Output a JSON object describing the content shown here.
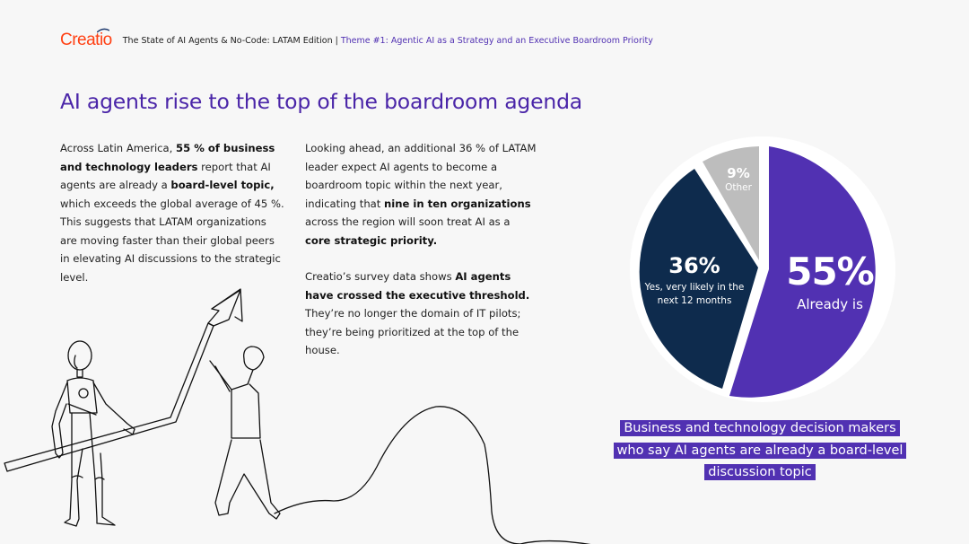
{
  "header": {
    "logo": "Creatio",
    "report_title": "The State of AI Agents & No-Code: LATAM Edition",
    "separator": "|",
    "theme": "Theme #1: Agentic AI as a Strategy and an Executive Boardroom Priority"
  },
  "title": "AI agents rise to the top of the boardroom agenda",
  "column1": {
    "p1": [
      {
        "text": "Across Latin America, ",
        "bold": false
      },
      {
        "text": "55 % of business and technology leaders",
        "bold": true
      },
      {
        "text": " report that AI agents are already a ",
        "bold": false
      },
      {
        "text": "board-level topic,",
        "bold": true
      },
      {
        "text": " which exceeds the global average of 45 %. This suggests that LATAM organizations are moving faster than their global peers in elevating AI discussions to the strategic level.",
        "bold": false
      }
    ]
  },
  "column2": {
    "p1": [
      {
        "text": "Looking ahead, an additional 36 % of LATAM leader expect AI agents to become a boardroom topic within the next year, indicating that ",
        "bold": false
      },
      {
        "text": "nine in ten organizations",
        "bold": true
      },
      {
        "text": " across the region will soon treat AI as a ",
        "bold": false
      },
      {
        "text": "core strategic priority.",
        "bold": true
      }
    ],
    "p2": [
      {
        "text": "Creatio’s survey data shows ",
        "bold": false
      },
      {
        "text": "AI agents have crossed the executive threshold.",
        "bold": true
      },
      {
        "text": " They’re no longer the domain of IT pilots; they’re being prioritized at the top of the house.",
        "bold": false
      }
    ]
  },
  "chart_data": {
    "type": "pie",
    "title": "Business and technology decision makers who say AI agents are already a board-level discussion topic",
    "categories": [
      "Already is",
      "Yes, very likely in the next 12 months",
      "Other"
    ],
    "values": [
      55,
      36,
      9
    ],
    "unit": "%",
    "colors": [
      "#5131b2",
      "#0e2b4d",
      "#bdbdbd"
    ],
    "labels": [
      {
        "pct": "55%",
        "text": "Already is"
      },
      {
        "pct": "36%",
        "text": "Yes, very likely in the next 12 months"
      },
      {
        "pct": "9%",
        "text": "Other"
      }
    ],
    "start_angle": "12 o'clock, clockwise",
    "legend": "none (inline labels)"
  },
  "caption": {
    "lines": [
      "Business and technology decision makers",
      "who say  AI agents are already a board-level",
      "discussion topic"
    ]
  },
  "colors": {
    "brand_orange": "#ff4013",
    "accent_purple": "#5131b2",
    "title_purple": "#4a25a8",
    "navy": "#0e2b4d",
    "gray": "#bdbdbd",
    "background": "#f7f7f7"
  }
}
